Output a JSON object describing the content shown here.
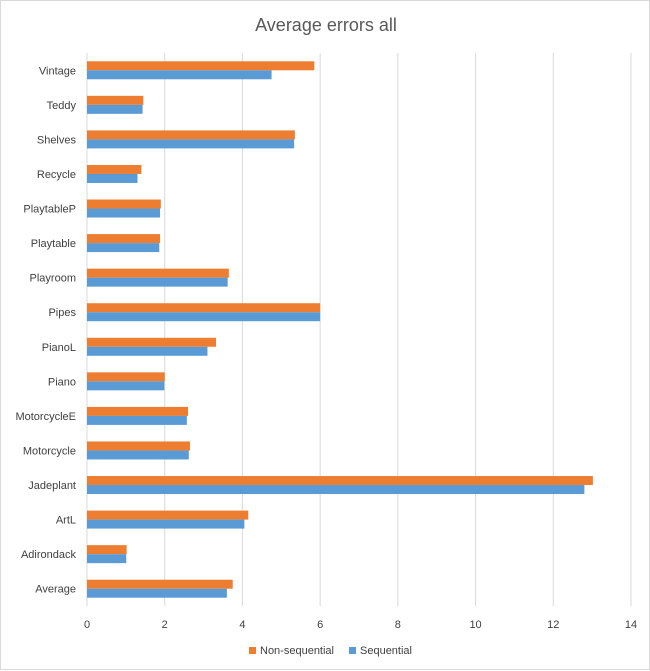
{
  "chart_data": {
    "type": "bar",
    "orientation": "horizontal",
    "title": "Average errors all",
    "xlabel": "",
    "ylabel": "",
    "xlim": [
      0,
      14
    ],
    "x_ticks": [
      0,
      2,
      4,
      6,
      8,
      10,
      12,
      14
    ],
    "grid": true,
    "legend_position": "bottom",
    "categories": [
      "Vintage",
      "Teddy",
      "Shelves",
      "Recycle",
      "PlaytableP",
      "Playtable",
      "Playroom",
      "Pipes",
      "PianoL",
      "Piano",
      "MotorcycleE",
      "Motorcycle",
      "Jadeplant",
      "ArtL",
      "Adirondack",
      "Average"
    ],
    "series": [
      {
        "name": "Non-sequential",
        "color": "#ED7D31",
        "values": [
          5.85,
          1.45,
          5.35,
          1.4,
          1.9,
          1.88,
          3.65,
          6.0,
          3.32,
          2.0,
          2.6,
          2.65,
          13.02,
          4.15,
          1.02,
          3.75
        ]
      },
      {
        "name": "Sequential",
        "color": "#5B9BD5",
        "values": [
          4.75,
          1.43,
          5.33,
          1.3,
          1.88,
          1.86,
          3.62,
          6.0,
          3.1,
          1.99,
          2.57,
          2.62,
          12.8,
          4.05,
          1.01,
          3.6
        ]
      }
    ]
  }
}
